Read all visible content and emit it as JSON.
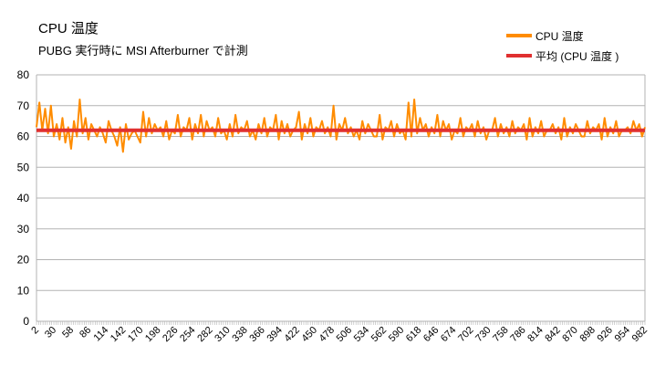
{
  "chart_data": {
    "type": "line",
    "title": "CPU 温度",
    "subtitle": "PUBG 実行時に MSI Afterburner で計測",
    "ylim": [
      0,
      80
    ],
    "yticks": [
      0,
      10,
      20,
      30,
      40,
      50,
      60,
      70,
      80
    ],
    "grid": true,
    "legend_position": "top-right",
    "x_start": 2,
    "x_end": 982,
    "x_tick_labels": [
      "2",
      "30",
      "58",
      "86",
      "114",
      "142",
      "170",
      "198",
      "226",
      "254",
      "282",
      "310",
      "338",
      "366",
      "394",
      "422",
      "450",
      "478",
      "506",
      "534",
      "562",
      "590",
      "618",
      "646",
      "674",
      "702",
      "730",
      "758",
      "786",
      "814",
      "842",
      "870",
      "898",
      "926",
      "954",
      "982"
    ],
    "series": [
      {
        "name": "CPU 温度",
        "color": "#ff8c00",
        "values": [
          63,
          71,
          62,
          69,
          61,
          70,
          60,
          64,
          59,
          66,
          58,
          63,
          56,
          65,
          60,
          72,
          61,
          66,
          59,
          64,
          62,
          60,
          63,
          61,
          58,
          65,
          62,
          60,
          57,
          63,
          55,
          64,
          59,
          61,
          62,
          60,
          58,
          68,
          60,
          66,
          61,
          64,
          62,
          63,
          60,
          65,
          59,
          62,
          61,
          67,
          60,
          63,
          62,
          66,
          59,
          64,
          61,
          67,
          60,
          65,
          62,
          63,
          60,
          66,
          61,
          62,
          59,
          64,
          60,
          67,
          61,
          63,
          62,
          65,
          60,
          62,
          59,
          64,
          61,
          66,
          60,
          63,
          62,
          67,
          59,
          65,
          61,
          64,
          60,
          62,
          63,
          68,
          59,
          64,
          61,
          66,
          60,
          63,
          62,
          65,
          61,
          63,
          60,
          70,
          59,
          64,
          62,
          66,
          61,
          63,
          60,
          62,
          59,
          65,
          61,
          64,
          62,
          60,
          60,
          67,
          59,
          63,
          62,
          65,
          60,
          64,
          61,
          62,
          59,
          71,
          60,
          72,
          61,
          66,
          62,
          64,
          60,
          63,
          61,
          67,
          60,
          65,
          62,
          64,
          59,
          62,
          61,
          66,
          60,
          63,
          62,
          64,
          60,
          65,
          61,
          63,
          59,
          62,
          62,
          66,
          60,
          64,
          61,
          63,
          60,
          65,
          61,
          63,
          62,
          64,
          59,
          66,
          60,
          63,
          61,
          65,
          60,
          62,
          62,
          64,
          61,
          63,
          59,
          66,
          60,
          63,
          61,
          64,
          62,
          60,
          60,
          65,
          61,
          63,
          62,
          64,
          59,
          66,
          60,
          63,
          61,
          65,
          60,
          62,
          62,
          63,
          61,
          65,
          62,
          64,
          60,
          63
        ],
        "line_width": 2
      },
      {
        "name": "平均 (CPU 温度 )",
        "color": "#e03030",
        "values": [
          62,
          62
        ],
        "x": [
          2,
          982
        ],
        "line_width": 4
      }
    ]
  }
}
